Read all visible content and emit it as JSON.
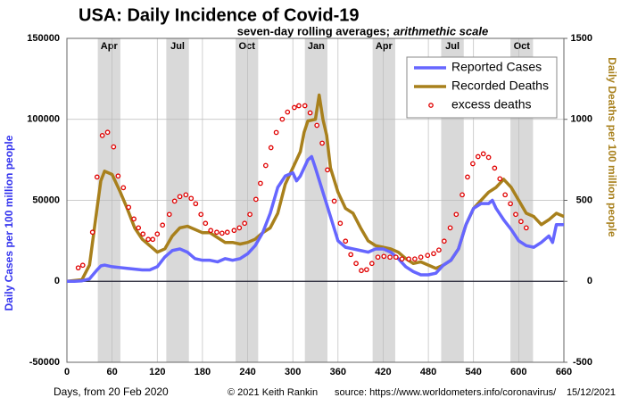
{
  "chart_data": {
    "type": "line",
    "title": "USA: Daily Incidence of Covid-19",
    "subtitle": "seven-day rolling averages;",
    "subtitle_italic": "arithmethic scale",
    "xlabel": "Days,  from 20 Feb 2020",
    "ylabel": "Daily Cases per 100 million people",
    "y2label": "Daily Deaths per 100 million people",
    "credit": "© 2021  Keith Rankin",
    "source": "source: https://www.worldometers.info/coronavirus/",
    "date": "15/12/2021",
    "xlim": [
      0,
      660
    ],
    "xticks": [
      0,
      60,
      120,
      180,
      240,
      300,
      360,
      420,
      480,
      540,
      600,
      660
    ],
    "ylim": [
      -50000,
      150000
    ],
    "yticks": [
      -50000,
      0,
      50000,
      100000,
      150000
    ],
    "y2lim": [
      -500,
      1500
    ],
    "y2ticks": [
      -500,
      0,
      500,
      1000,
      1500
    ],
    "grid": true,
    "legend": "upper right",
    "bands": [
      {
        "label": "Apr",
        "start": 41,
        "end": 71
      },
      {
        "label": "Jul",
        "start": 132,
        "end": 162
      },
      {
        "label": "Oct",
        "start": 224,
        "end": 254
      },
      {
        "label": "Jan",
        "start": 316,
        "end": 346
      },
      {
        "label": "Apr",
        "start": 406,
        "end": 436
      },
      {
        "label": "Jul",
        "start": 497,
        "end": 527
      },
      {
        "label": "Oct",
        "start": 589,
        "end": 619
      }
    ],
    "series": [
      {
        "name": "Reported Cases",
        "color": "#6666ff",
        "style": "line",
        "axis": "y",
        "x": [
          0,
          10,
          20,
          30,
          40,
          45,
          50,
          60,
          70,
          80,
          90,
          100,
          110,
          120,
          130,
          140,
          150,
          160,
          170,
          180,
          190,
          200,
          210,
          220,
          230,
          240,
          250,
          260,
          270,
          280,
          290,
          300,
          305,
          310,
          320,
          325,
          330,
          340,
          350,
          360,
          370,
          380,
          390,
          400,
          410,
          420,
          430,
          440,
          450,
          460,
          470,
          480,
          490,
          500,
          510,
          520,
          530,
          540,
          550,
          560,
          565,
          570,
          580,
          590,
          600,
          610,
          620,
          630,
          640,
          645,
          650,
          660
        ],
        "values": [
          0,
          0,
          300,
          1500,
          7000,
          9500,
          10000,
          9000,
          8500,
          8000,
          7500,
          7000,
          7000,
          9000,
          15000,
          19000,
          20000,
          18000,
          14000,
          13000,
          13000,
          12000,
          14000,
          13000,
          14000,
          17000,
          22000,
          30000,
          42000,
          58000,
          65000,
          67000,
          62000,
          65000,
          75000,
          77000,
          70000,
          55000,
          40000,
          25000,
          21000,
          20000,
          19000,
          18000,
          20000,
          20000,
          18000,
          14000,
          9000,
          6000,
          4000,
          4000,
          5000,
          10000,
          13000,
          20000,
          35000,
          45000,
          48000,
          48000,
          50000,
          45000,
          38000,
          32000,
          25000,
          22000,
          21000,
          24000,
          28000,
          24000,
          35000,
          35000
        ]
      },
      {
        "name": "Recorded Deaths",
        "color": "#a8801c",
        "style": "line",
        "axis": "y2",
        "x": [
          0,
          20,
          30,
          40,
          45,
          50,
          60,
          70,
          80,
          90,
          100,
          110,
          120,
          130,
          140,
          150,
          160,
          170,
          180,
          190,
          200,
          210,
          220,
          230,
          240,
          250,
          260,
          270,
          280,
          290,
          300,
          310,
          315,
          320,
          330,
          335,
          340,
          345,
          350,
          360,
          370,
          380,
          390,
          400,
          410,
          420,
          430,
          440,
          450,
          460,
          470,
          480,
          490,
          500,
          510,
          520,
          530,
          540,
          550,
          560,
          570,
          580,
          590,
          600,
          610,
          620,
          630,
          640,
          650,
          660
        ],
        "values": [
          0,
          10,
          100,
          450,
          620,
          680,
          660,
          560,
          450,
          330,
          260,
          220,
          180,
          200,
          280,
          330,
          340,
          320,
          300,
          300,
          270,
          240,
          240,
          230,
          240,
          260,
          300,
          330,
          420,
          600,
          700,
          800,
          920,
          990,
          1000,
          1150,
          1000,
          900,
          700,
          550,
          450,
          420,
          330,
          250,
          220,
          210,
          200,
          180,
          140,
          110,
          120,
          100,
          80,
          100,
          130,
          200,
          350,
          450,
          500,
          550,
          580,
          630,
          580,
          500,
          420,
          400,
          350,
          380,
          420,
          400
        ]
      },
      {
        "name": "excess deaths",
        "color": "#e00000",
        "style": "scatter",
        "axis": "y2",
        "x": [
          15,
          21,
          34,
          40,
          47,
          54,
          62,
          68,
          75,
          82,
          89,
          95,
          101,
          108,
          114,
          120,
          127,
          136,
          143,
          150,
          158,
          165,
          171,
          178,
          184,
          191,
          199,
          206,
          213,
          222,
          229,
          236,
          243,
          251,
          257,
          264,
          271,
          278,
          286,
          293,
          302,
          308,
          316,
          323,
          332,
          339,
          346,
          355,
          363,
          370,
          377,
          384,
          391,
          398,
          405,
          413,
          421,
          429,
          437,
          445,
          454,
          462,
          470,
          479,
          487,
          494,
          501,
          509,
          517,
          525,
          532,
          539,
          546,
          553,
          560,
          568,
          575,
          582,
          589,
          596,
          603,
          610
        ],
        "values": [
          83,
          99,
          303,
          644,
          900,
          920,
          830,
          650,
          578,
          457,
          385,
          330,
          292,
          259,
          259,
          292,
          347,
          413,
          495,
          523,
          534,
          512,
          479,
          413,
          358,
          314,
          303,
          297,
          303,
          314,
          330,
          358,
          413,
          506,
          605,
          715,
          825,
          919,
          1001,
          1045,
          1073,
          1084,
          1084,
          1040,
          963,
          853,
          688,
          495,
          358,
          248,
          165,
          110,
          66,
          72,
          110,
          149,
          154,
          149,
          149,
          138,
          138,
          138,
          149,
          160,
          171,
          193,
          248,
          330,
          413,
          534,
          644,
          726,
          770,
          787,
          765,
          699,
          633,
          534,
          479,
          413,
          369,
          330
        ]
      }
    ]
  }
}
